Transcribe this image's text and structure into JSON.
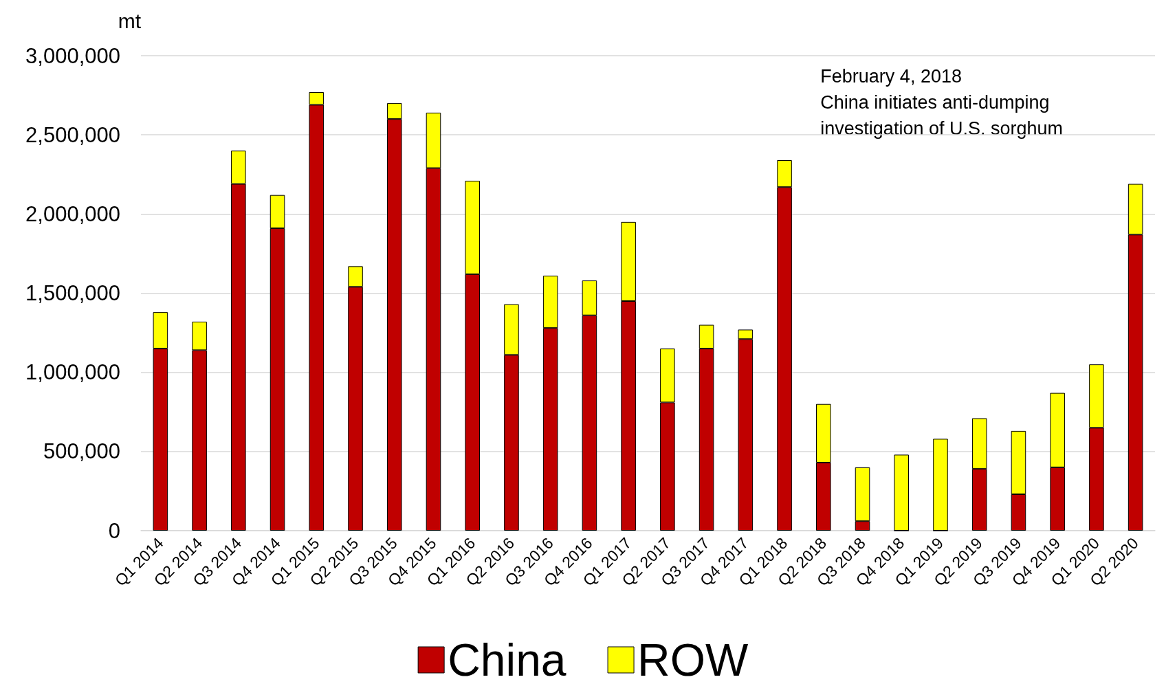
{
  "chart_data": {
    "type": "bar",
    "stacked": true,
    "ylabel": "mt",
    "categories": [
      "Q1 2014",
      "Q2 2014",
      "Q3 2014",
      "Q4 2014",
      "Q1 2015",
      "Q2 2015",
      "Q3 2015",
      "Q4 2015",
      "Q1 2016",
      "Q2 2016",
      "Q3 2016",
      "Q4 2016",
      "Q1 2017",
      "Q2 2017",
      "Q3 2017",
      "Q4 2017",
      "Q1 2018",
      "Q2 2018",
      "Q3 2018",
      "Q4 2018",
      "Q1 2019",
      "Q2 2019",
      "Q3 2019",
      "Q4 2019",
      "Q1 2020",
      "Q2 2020"
    ],
    "series": [
      {
        "name": "China",
        "color": "#c00000",
        "values": [
          1150000,
          1140000,
          2190000,
          1910000,
          2690000,
          1540000,
          2600000,
          2290000,
          1620000,
          1110000,
          1280000,
          1360000,
          1450000,
          810000,
          1150000,
          1210000,
          2170000,
          430000,
          60000,
          0,
          0,
          390000,
          230000,
          400000,
          650000,
          1870000
        ]
      },
      {
        "name": "ROW",
        "color": "#ffff00",
        "values": [
          230000,
          180000,
          210000,
          210000,
          80000,
          130000,
          100000,
          350000,
          590000,
          320000,
          330000,
          220000,
          500000,
          340000,
          150000,
          60000,
          170000,
          370000,
          340000,
          480000,
          580000,
          320000,
          400000,
          470000,
          400000,
          320000
        ]
      }
    ],
    "ylim": [
      0,
      3000000
    ],
    "yticks": [
      0,
      {
        "value": 500000,
        "label": "500,000"
      },
      {
        "value": 1000000,
        "label": "1,000,000"
      },
      {
        "value": 1500000,
        "label": "1,500,000"
      },
      {
        "value": 2000000,
        "label": "2,000,000"
      },
      {
        "value": 2500000,
        "label": "2,500,000"
      },
      {
        "value": 3000000,
        "label": "3,000,000"
      }
    ],
    "grid": "y",
    "legend": "bottom",
    "annotations": [
      "February 4, 2018\nChina initiates anti-dumping\ninvestigation of U.S. sorghum"
    ]
  }
}
